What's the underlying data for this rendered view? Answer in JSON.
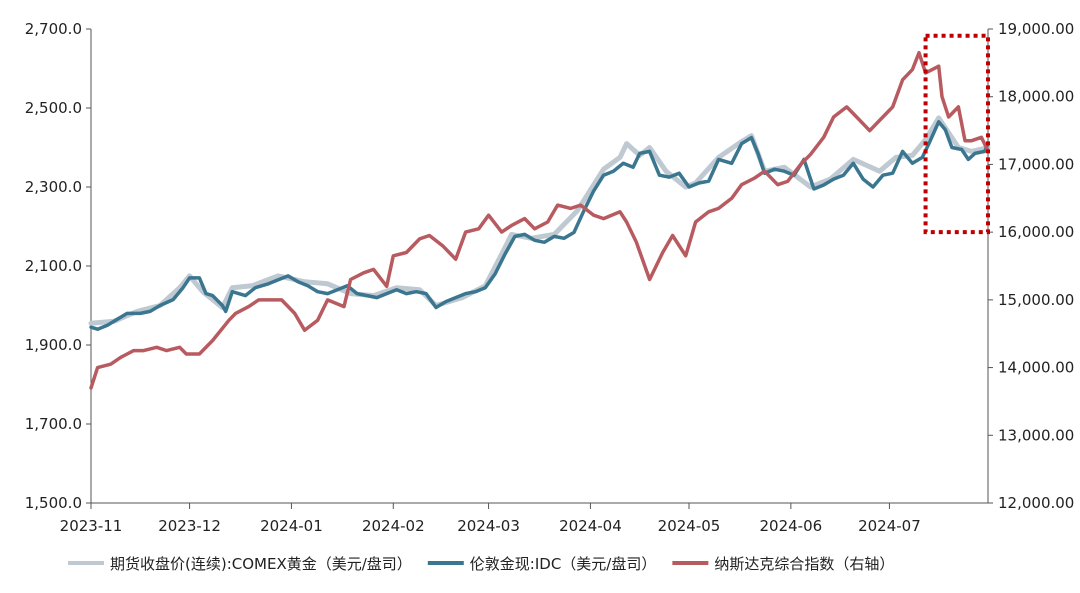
{
  "chart_data": {
    "type": "line",
    "title": "",
    "xlabel": "",
    "ylabel": "",
    "y2label": "",
    "x_ticks": [
      "2023-11",
      "2023-12",
      "2024-01",
      "2024-02",
      "2024-03",
      "2024-04",
      "2024-05",
      "2024-06",
      "2024-07"
    ],
    "ylim": [
      1500,
      2700
    ],
    "y_ticks": [
      "1,500.0",
      "1,700.0",
      "1,900.0",
      "2,100.0",
      "2,300.0",
      "2,500.0",
      "2,700.0"
    ],
    "y2lim": [
      12000,
      19000
    ],
    "y2_ticks": [
      "12,000.00",
      "13,000.00",
      "14,000.00",
      "15,000.00",
      "16,000.00",
      "17,000.00",
      "18,000.00",
      "19,000.00"
    ],
    "grid": false,
    "legend_position": "bottom",
    "series": [
      {
        "name": "期货收盘价(连续):COMEX黄金（美元/盘司）",
        "axis": "left",
        "color": "#bfc9d2",
        "points": [
          [
            "2023-11-01",
            1955
          ],
          [
            "2023-11-08",
            1960
          ],
          [
            "2023-11-15",
            1985
          ],
          [
            "2023-11-22",
            2000
          ],
          [
            "2023-11-28",
            2045
          ],
          [
            "2023-12-01",
            2075
          ],
          [
            "2023-12-05",
            2035
          ],
          [
            "2023-12-11",
            1995
          ],
          [
            "2023-12-14",
            2045
          ],
          [
            "2023-12-20",
            2050
          ],
          [
            "2023-12-28",
            2075
          ],
          [
            "2024-01-05",
            2060
          ],
          [
            "2024-01-12",
            2055
          ],
          [
            "2024-01-19",
            2030
          ],
          [
            "2024-01-26",
            2025
          ],
          [
            "2024-02-02",
            2045
          ],
          [
            "2024-02-09",
            2040
          ],
          [
            "2024-02-14",
            2000
          ],
          [
            "2024-02-22",
            2020
          ],
          [
            "2024-02-29",
            2050
          ],
          [
            "2024-03-05",
            2130
          ],
          [
            "2024-03-08",
            2180
          ],
          [
            "2024-03-14",
            2170
          ],
          [
            "2024-03-21",
            2180
          ],
          [
            "2024-03-28",
            2240
          ],
          [
            "2024-04-05",
            2345
          ],
          [
            "2024-04-10",
            2375
          ],
          [
            "2024-04-12",
            2410
          ],
          [
            "2024-04-16",
            2380
          ],
          [
            "2024-04-19",
            2400
          ],
          [
            "2024-04-24",
            2340
          ],
          [
            "2024-04-30",
            2300
          ],
          [
            "2024-05-03",
            2310
          ],
          [
            "2024-05-10",
            2375
          ],
          [
            "2024-05-17",
            2415
          ],
          [
            "2024-05-20",
            2430
          ],
          [
            "2024-05-24",
            2340
          ],
          [
            "2024-05-30",
            2350
          ],
          [
            "2024-06-07",
            2300
          ],
          [
            "2024-06-13",
            2320
          ],
          [
            "2024-06-20",
            2370
          ],
          [
            "2024-06-28",
            2340
          ],
          [
            "2024-07-03",
            2375
          ],
          [
            "2024-07-08",
            2380
          ],
          [
            "2024-07-12",
            2420
          ],
          [
            "2024-07-16",
            2475
          ],
          [
            "2024-07-18",
            2450
          ],
          [
            "2024-07-22",
            2400
          ],
          [
            "2024-07-26",
            2390
          ],
          [
            "2024-07-31",
            2400
          ]
        ]
      },
      {
        "name": "伦敦金现:IDC（美元/盘司）",
        "axis": "left",
        "color": "#3b7690",
        "points": [
          [
            "2023-11-01",
            1945
          ],
          [
            "2023-11-03",
            1940
          ],
          [
            "2023-11-06",
            1950
          ],
          [
            "2023-11-09",
            1965
          ],
          [
            "2023-11-12",
            1980
          ],
          [
            "2023-11-16",
            1980
          ],
          [
            "2023-11-19",
            1985
          ],
          [
            "2023-11-22",
            2000
          ],
          [
            "2023-11-26",
            2015
          ],
          [
            "2023-11-29",
            2045
          ],
          [
            "2023-12-01",
            2070
          ],
          [
            "2023-12-04",
            2070
          ],
          [
            "2023-12-06",
            2030
          ],
          [
            "2023-12-08",
            2025
          ],
          [
            "2023-12-11",
            2000
          ],
          [
            "2023-12-12",
            1985
          ],
          [
            "2023-12-14",
            2035
          ],
          [
            "2023-12-18",
            2025
          ],
          [
            "2023-12-21",
            2045
          ],
          [
            "2023-12-25",
            2055
          ],
          [
            "2023-12-28",
            2065
          ],
          [
            "2023-12-31",
            2075
          ],
          [
            "2024-01-03",
            2060
          ],
          [
            "2024-01-06",
            2050
          ],
          [
            "2024-01-09",
            2035
          ],
          [
            "2024-01-12",
            2030
          ],
          [
            "2024-01-15",
            2040
          ],
          [
            "2024-01-18",
            2050
          ],
          [
            "2024-01-21",
            2030
          ],
          [
            "2024-01-24",
            2025
          ],
          [
            "2024-01-27",
            2020
          ],
          [
            "2024-01-30",
            2030
          ],
          [
            "2024-02-02",
            2040
          ],
          [
            "2024-02-05",
            2030
          ],
          [
            "2024-02-08",
            2035
          ],
          [
            "2024-02-11",
            2030
          ],
          [
            "2024-02-14",
            1995
          ],
          [
            "2024-02-17",
            2010
          ],
          [
            "2024-02-20",
            2020
          ],
          [
            "2024-02-23",
            2030
          ],
          [
            "2024-02-26",
            2035
          ],
          [
            "2024-02-29",
            2045
          ],
          [
            "2024-03-03",
            2080
          ],
          [
            "2024-03-06",
            2130
          ],
          [
            "2024-03-09",
            2175
          ],
          [
            "2024-03-12",
            2180
          ],
          [
            "2024-03-15",
            2165
          ],
          [
            "2024-03-18",
            2160
          ],
          [
            "2024-03-21",
            2175
          ],
          [
            "2024-03-24",
            2170
          ],
          [
            "2024-03-27",
            2185
          ],
          [
            "2024-03-30",
            2240
          ],
          [
            "2024-04-02",
            2290
          ],
          [
            "2024-04-05",
            2330
          ],
          [
            "2024-04-08",
            2340
          ],
          [
            "2024-04-11",
            2360
          ],
          [
            "2024-04-14",
            2350
          ],
          [
            "2024-04-16",
            2385
          ],
          [
            "2024-04-19",
            2390
          ],
          [
            "2024-04-22",
            2330
          ],
          [
            "2024-04-25",
            2325
          ],
          [
            "2024-04-28",
            2335
          ],
          [
            "2024-05-01",
            2300
          ],
          [
            "2024-05-04",
            2310
          ],
          [
            "2024-05-07",
            2315
          ],
          [
            "2024-05-10",
            2370
          ],
          [
            "2024-05-14",
            2360
          ],
          [
            "2024-05-17",
            2410
          ],
          [
            "2024-05-20",
            2425
          ],
          [
            "2024-05-22",
            2385
          ],
          [
            "2024-05-24",
            2335
          ],
          [
            "2024-05-27",
            2345
          ],
          [
            "2024-05-30",
            2340
          ],
          [
            "2024-06-02",
            2330
          ],
          [
            "2024-06-05",
            2370
          ],
          [
            "2024-06-08",
            2295
          ],
          [
            "2024-06-11",
            2305
          ],
          [
            "2024-06-14",
            2320
          ],
          [
            "2024-06-17",
            2330
          ],
          [
            "2024-06-20",
            2360
          ],
          [
            "2024-06-23",
            2320
          ],
          [
            "2024-06-26",
            2300
          ],
          [
            "2024-06-29",
            2330
          ],
          [
            "2024-07-02",
            2335
          ],
          [
            "2024-07-05",
            2390
          ],
          [
            "2024-07-08",
            2360
          ],
          [
            "2024-07-11",
            2375
          ],
          [
            "2024-07-13",
            2410
          ],
          [
            "2024-07-16",
            2465
          ],
          [
            "2024-07-18",
            2445
          ],
          [
            "2024-07-20",
            2400
          ],
          [
            "2024-07-23",
            2395
          ],
          [
            "2024-07-25",
            2370
          ],
          [
            "2024-07-27",
            2385
          ],
          [
            "2024-07-30",
            2390
          ],
          [
            "2024-07-31",
            2410
          ]
        ]
      },
      {
        "name": "纳斯达克综合指数（右轴）",
        "axis": "right",
        "color": "#b85b60",
        "points": [
          [
            "2023-11-01",
            13700
          ],
          [
            "2023-11-03",
            14000
          ],
          [
            "2023-11-07",
            14050
          ],
          [
            "2023-11-10",
            14150
          ],
          [
            "2023-11-14",
            14250
          ],
          [
            "2023-11-17",
            14250
          ],
          [
            "2023-11-21",
            14300
          ],
          [
            "2023-11-24",
            14250
          ],
          [
            "2023-11-28",
            14300
          ],
          [
            "2023-11-30",
            14200
          ],
          [
            "2023-12-04",
            14200
          ],
          [
            "2023-12-08",
            14400
          ],
          [
            "2023-12-13",
            14700
          ],
          [
            "2023-12-15",
            14800
          ],
          [
            "2023-12-19",
            14900
          ],
          [
            "2023-12-22",
            15000
          ],
          [
            "2023-12-26",
            15000
          ],
          [
            "2023-12-29",
            15000
          ],
          [
            "2024-01-02",
            14800
          ],
          [
            "2024-01-05",
            14550
          ],
          [
            "2024-01-09",
            14700
          ],
          [
            "2024-01-12",
            15000
          ],
          [
            "2024-01-17",
            14900
          ],
          [
            "2024-01-19",
            15300
          ],
          [
            "2024-01-23",
            15400
          ],
          [
            "2024-01-26",
            15450
          ],
          [
            "2024-01-30",
            15200
          ],
          [
            "2024-02-01",
            15650
          ],
          [
            "2024-02-05",
            15700
          ],
          [
            "2024-02-09",
            15900
          ],
          [
            "2024-02-12",
            15950
          ],
          [
            "2024-02-16",
            15800
          ],
          [
            "2024-02-20",
            15600
          ],
          [
            "2024-02-23",
            16000
          ],
          [
            "2024-02-27",
            16050
          ],
          [
            "2024-03-01",
            16250
          ],
          [
            "2024-03-05",
            16000
          ],
          [
            "2024-03-08",
            16100
          ],
          [
            "2024-03-12",
            16200
          ],
          [
            "2024-03-15",
            16050
          ],
          [
            "2024-03-19",
            16150
          ],
          [
            "2024-03-22",
            16400
          ],
          [
            "2024-03-26",
            16350
          ],
          [
            "2024-03-29",
            16400
          ],
          [
            "2024-04-02",
            16250
          ],
          [
            "2024-04-05",
            16200
          ],
          [
            "2024-04-10",
            16300
          ],
          [
            "2024-04-12",
            16150
          ],
          [
            "2024-04-15",
            15850
          ],
          [
            "2024-04-19",
            15300
          ],
          [
            "2024-04-23",
            15700
          ],
          [
            "2024-04-26",
            15950
          ],
          [
            "2024-04-30",
            15650
          ],
          [
            "2024-05-03",
            16150
          ],
          [
            "2024-05-07",
            16300
          ],
          [
            "2024-05-10",
            16350
          ],
          [
            "2024-05-14",
            16500
          ],
          [
            "2024-05-17",
            16700
          ],
          [
            "2024-05-21",
            16800
          ],
          [
            "2024-05-24",
            16900
          ],
          [
            "2024-05-28",
            16700
          ],
          [
            "2024-05-31",
            16750
          ],
          [
            "2024-06-04",
            17000
          ],
          [
            "2024-06-07",
            17150
          ],
          [
            "2024-06-11",
            17400
          ],
          [
            "2024-06-14",
            17700
          ],
          [
            "2024-06-18",
            17850
          ],
          [
            "2024-06-21",
            17700
          ],
          [
            "2024-06-25",
            17500
          ],
          [
            "2024-06-28",
            17650
          ],
          [
            "2024-07-02",
            17850
          ],
          [
            "2024-07-05",
            18250
          ],
          [
            "2024-07-08",
            18400
          ],
          [
            "2024-07-10",
            18650
          ],
          [
            "2024-07-12",
            18350
          ],
          [
            "2024-07-16",
            18450
          ],
          [
            "2024-07-17",
            18000
          ],
          [
            "2024-07-19",
            17700
          ],
          [
            "2024-07-22",
            17850
          ],
          [
            "2024-07-24",
            17350
          ],
          [
            "2024-07-26",
            17350
          ],
          [
            "2024-07-29",
            17400
          ],
          [
            "2024-07-31",
            17200
          ]
        ]
      }
    ],
    "highlight_box": {
      "x_start": "2024-07-12",
      "x_end": "2024-07-31",
      "y2_top": 18900,
      "y2_bottom": 16000,
      "color": "#c00000",
      "style": "dotted"
    }
  }
}
